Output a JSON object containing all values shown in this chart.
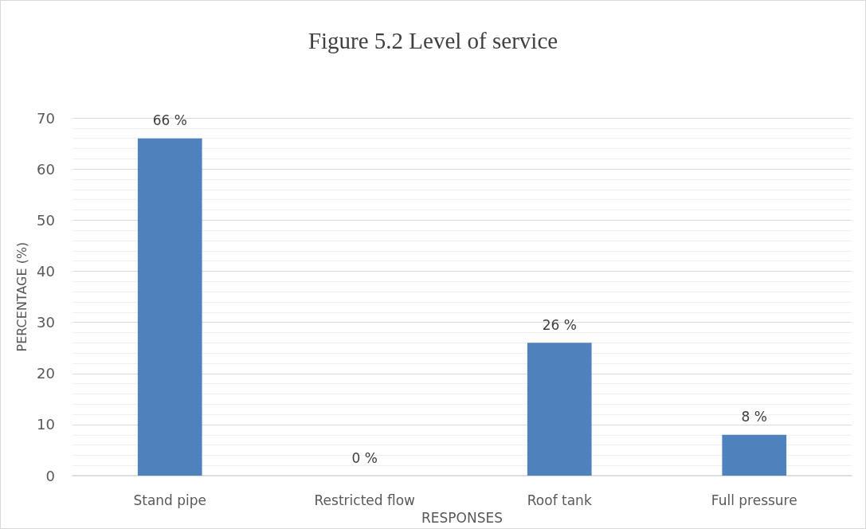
{
  "chart_data": {
    "type": "bar",
    "title": "Figure 5.2 Level of service",
    "xlabel": "RESPONSES",
    "ylabel": "PERCENTAGE (%)",
    "categories": [
      "Stand pipe",
      "Restricted flow",
      "Roof tank",
      "Full pressure"
    ],
    "values": [
      66,
      0,
      26,
      8
    ],
    "value_labels": [
      "66 %",
      "0 %",
      "26 %",
      "8 %"
    ],
    "color": "#4f81bd",
    "ylim": [
      0,
      70
    ],
    "yticks": [
      0,
      10,
      20,
      30,
      40,
      50,
      60,
      70
    ],
    "grid": "y"
  }
}
